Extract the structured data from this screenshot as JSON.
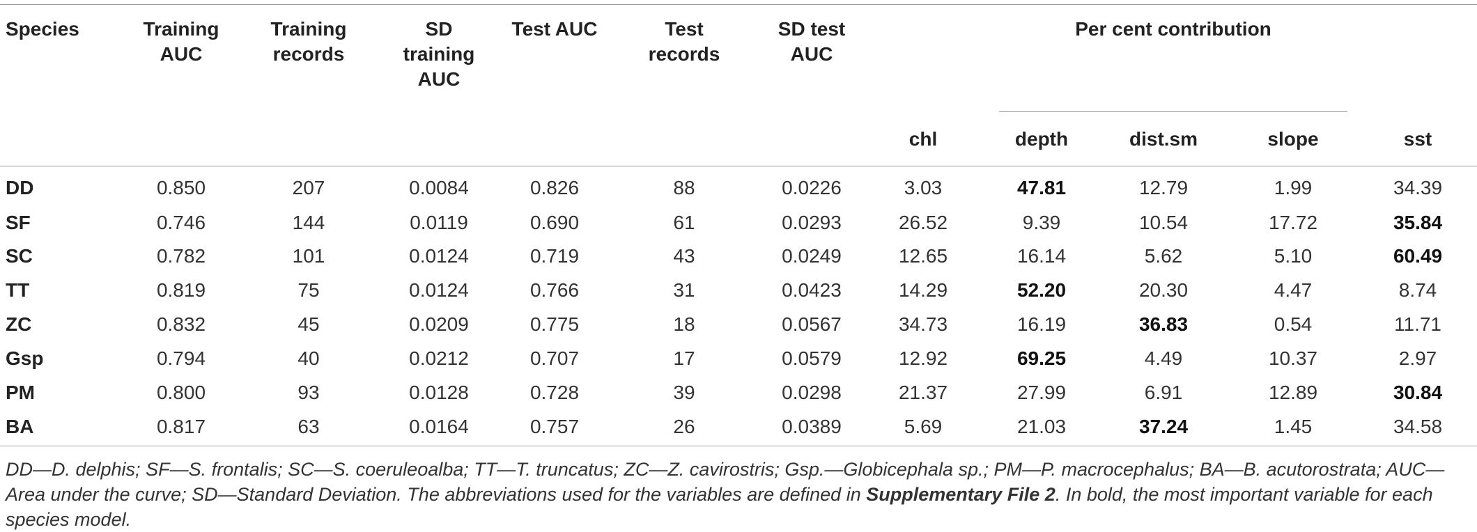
{
  "header": {
    "species": "Species",
    "training_auc": [
      "Training",
      "AUC"
    ],
    "training_records": [
      "Training",
      "records"
    ],
    "sd_training_auc": [
      "SD",
      "training",
      "AUC"
    ],
    "test_auc": "Test AUC",
    "test_records": [
      "Test",
      "records"
    ],
    "sd_test_auc": [
      "SD test",
      "AUC"
    ],
    "per_cent_contribution": "Per cent contribution",
    "vars": [
      "chl",
      "depth",
      "dist.sm",
      "slope",
      "sst"
    ]
  },
  "rows": [
    {
      "species": "DD",
      "cells": [
        "0.850",
        "207",
        "0.0084",
        "0.826",
        "88",
        "0.0226",
        "3.03",
        "47.81",
        "12.79",
        "1.99",
        "34.39"
      ],
      "bold_index": 7
    },
    {
      "species": "SF",
      "cells": [
        "0.746",
        "144",
        "0.0119",
        "0.690",
        "61",
        "0.0293",
        "26.52",
        "9.39",
        "10.54",
        "17.72",
        "35.84"
      ],
      "bold_index": 10
    },
    {
      "species": "SC",
      "cells": [
        "0.782",
        "101",
        "0.0124",
        "0.719",
        "43",
        "0.0249",
        "12.65",
        "16.14",
        "5.62",
        "5.10",
        "60.49"
      ],
      "bold_index": 10
    },
    {
      "species": "TT",
      "cells": [
        "0.819",
        "75",
        "0.0124",
        "0.766",
        "31",
        "0.0423",
        "14.29",
        "52.20",
        "20.30",
        "4.47",
        "8.74"
      ],
      "bold_index": 7
    },
    {
      "species": "ZC",
      "cells": [
        "0.832",
        "45",
        "0.0209",
        "0.775",
        "18",
        "0.0567",
        "34.73",
        "16.19",
        "36.83",
        "0.54",
        "11.71"
      ],
      "bold_index": 8
    },
    {
      "species": "Gsp",
      "cells": [
        "0.794",
        "40",
        "0.0212",
        "0.707",
        "17",
        "0.0579",
        "12.92",
        "69.25",
        "4.49",
        "10.37",
        "2.97"
      ],
      "bold_index": 7
    },
    {
      "species": "PM",
      "cells": [
        "0.800",
        "93",
        "0.0128",
        "0.728",
        "39",
        "0.0298",
        "21.37",
        "27.99",
        "6.91",
        "12.89",
        "30.84"
      ],
      "bold_index": 10
    },
    {
      "species": "BA",
      "cells": [
        "0.817",
        "63",
        "0.0164",
        "0.757",
        "26",
        "0.0389",
        "5.69",
        "21.03",
        "37.24",
        "1.45",
        "34.58"
      ],
      "bold_index": 8
    }
  ],
  "footnote": {
    "part1": "DD—D. delphis; SF—S. frontalis; SC—S. coeruleoalba; TT—T. truncatus; ZC—Z. cavirostris; Gsp.—Globicephala sp.; PM—P. macrocephalus; BA—B. acutorostrata; AUC—Area under the curve; SD—Standard Deviation. The abbreviations used for the variables are defined in ",
    "bold": "Supplementary File 2",
    "part2": ". In bold, the most important variable for each species model."
  }
}
